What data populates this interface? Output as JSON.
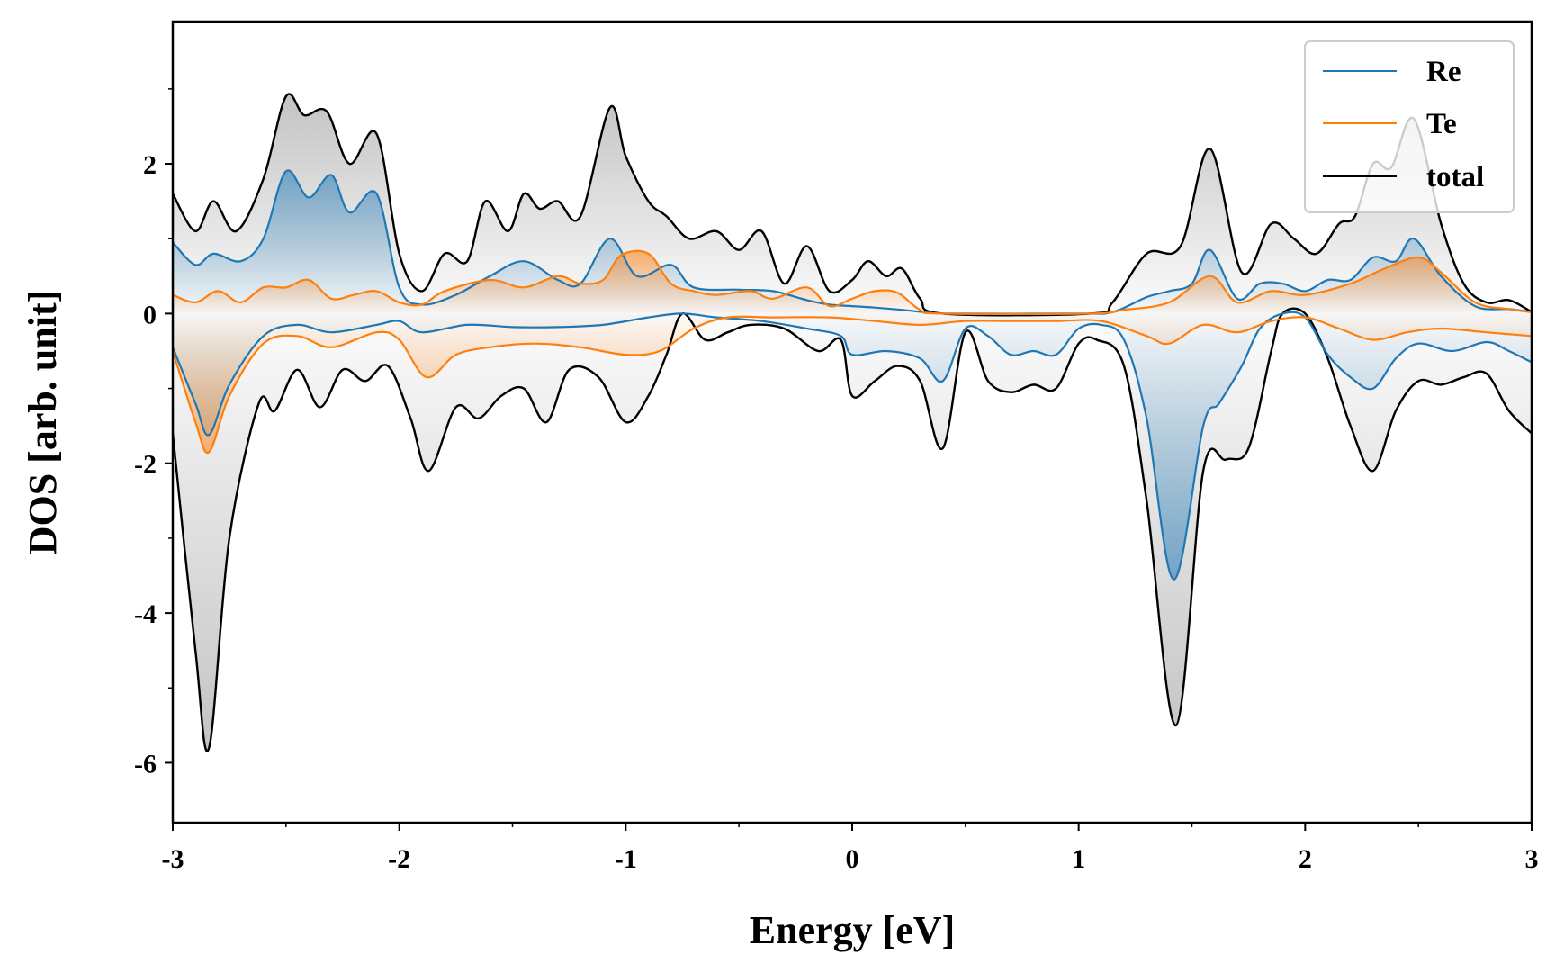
{
  "chart_data": {
    "type": "line",
    "title": "",
    "xlabel": "Energy [eV]",
    "ylabel": "DOS [arb. unit]",
    "xlim": [
      -3,
      3
    ],
    "ylim": [
      -6.8,
      3.9
    ],
    "x_ticks": [
      -3,
      -2,
      -1,
      0,
      1,
      2,
      3
    ],
    "x_tick_labels": [
      "-3",
      "-2",
      "-1",
      "0",
      "1",
      "2",
      "3"
    ],
    "y_ticks": [
      -6,
      -4,
      -2,
      0,
      2
    ],
    "y_tick_labels": [
      "-6",
      "-4",
      "-2",
      "0",
      "2"
    ],
    "legend_position": "top-right",
    "grid": false,
    "series": [
      {
        "name": "Re",
        "color": "#1f77b4",
        "fill_color": "#1f77b4",
        "up": [
          [
            -3,
            0.95
          ],
          [
            -2.9,
            0.65
          ],
          [
            -2.82,
            0.8
          ],
          [
            -2.7,
            0.7
          ],
          [
            -2.6,
            1.0
          ],
          [
            -2.5,
            1.9
          ],
          [
            -2.4,
            1.55
          ],
          [
            -2.3,
            1.85
          ],
          [
            -2.22,
            1.35
          ],
          [
            -2.1,
            1.6
          ],
          [
            -2,
            0.35
          ],
          [
            -1.9,
            0.12
          ],
          [
            -1.75,
            0.25
          ],
          [
            -1.6,
            0.5
          ],
          [
            -1.45,
            0.7
          ],
          [
            -1.3,
            0.45
          ],
          [
            -1.2,
            0.4
          ],
          [
            -1.07,
            1.0
          ],
          [
            -0.95,
            0.5
          ],
          [
            -0.8,
            0.65
          ],
          [
            -0.7,
            0.35
          ],
          [
            -0.5,
            0.32
          ],
          [
            -0.35,
            0.3
          ],
          [
            -0.2,
            0.18
          ],
          [
            -0.1,
            0.12
          ],
          [
            0,
            0.1
          ],
          [
            0.1,
            0.08
          ],
          [
            0.22,
            0.05
          ],
          [
            0.35,
            0.01
          ],
          [
            0.45,
            0.0
          ],
          [
            1.0,
            0.0
          ],
          [
            1.15,
            0.02
          ],
          [
            1.3,
            0.22
          ],
          [
            1.4,
            0.3
          ],
          [
            1.5,
            0.4
          ],
          [
            1.58,
            0.85
          ],
          [
            1.7,
            0.2
          ],
          [
            1.8,
            0.4
          ],
          [
            1.9,
            0.4
          ],
          [
            2.0,
            0.3
          ],
          [
            2.1,
            0.45
          ],
          [
            2.2,
            0.45
          ],
          [
            2.3,
            0.75
          ],
          [
            2.4,
            0.7
          ],
          [
            2.48,
            1.0
          ],
          [
            2.6,
            0.5
          ],
          [
            2.75,
            0.1
          ],
          [
            2.9,
            0.06
          ],
          [
            3,
            0.02
          ]
        ],
        "down": [
          [
            -3,
            -0.45
          ],
          [
            -2.9,
            -1.2
          ],
          [
            -2.84,
            -1.62
          ],
          [
            -2.75,
            -0.95
          ],
          [
            -2.6,
            -0.3
          ],
          [
            -2.45,
            -0.15
          ],
          [
            -2.3,
            -0.25
          ],
          [
            -2.1,
            -0.15
          ],
          [
            -2.0,
            -0.1
          ],
          [
            -1.9,
            -0.25
          ],
          [
            -1.7,
            -0.15
          ],
          [
            -1.5,
            -0.18
          ],
          [
            -1.3,
            -0.18
          ],
          [
            -1.1,
            -0.15
          ],
          [
            -0.9,
            -0.05
          ],
          [
            -0.75,
            0.0
          ],
          [
            -0.6,
            -0.05
          ],
          [
            -0.4,
            -0.1
          ],
          [
            -0.2,
            -0.2
          ],
          [
            -0.05,
            -0.3
          ],
          [
            0,
            -0.55
          ],
          [
            0.15,
            -0.5
          ],
          [
            0.3,
            -0.6
          ],
          [
            0.4,
            -0.9
          ],
          [
            0.5,
            -0.2
          ],
          [
            0.6,
            -0.3
          ],
          [
            0.7,
            -0.55
          ],
          [
            0.8,
            -0.5
          ],
          [
            0.9,
            -0.55
          ],
          [
            1.0,
            -0.2
          ],
          [
            1.1,
            -0.15
          ],
          [
            1.2,
            -0.35
          ],
          [
            1.3,
            -1.4
          ],
          [
            1.42,
            -3.55
          ],
          [
            1.55,
            -1.5
          ],
          [
            1.62,
            -1.2
          ],
          [
            1.72,
            -0.7
          ],
          [
            1.8,
            -0.2
          ],
          [
            1.9,
            0.0
          ],
          [
            2.0,
            -0.05
          ],
          [
            2.1,
            -0.55
          ],
          [
            2.2,
            -0.85
          ],
          [
            2.3,
            -1.0
          ],
          [
            2.4,
            -0.6
          ],
          [
            2.5,
            -0.4
          ],
          [
            2.65,
            -0.5
          ],
          [
            2.8,
            -0.38
          ],
          [
            2.9,
            -0.5
          ],
          [
            3,
            -0.65
          ]
        ]
      },
      {
        "name": "Te",
        "color": "#ff7f0e",
        "fill_color": "#ff7f0e",
        "up": [
          [
            -3,
            0.25
          ],
          [
            -2.9,
            0.15
          ],
          [
            -2.8,
            0.3
          ],
          [
            -2.7,
            0.15
          ],
          [
            -2.6,
            0.35
          ],
          [
            -2.5,
            0.35
          ],
          [
            -2.4,
            0.45
          ],
          [
            -2.3,
            0.2
          ],
          [
            -2.2,
            0.25
          ],
          [
            -2.1,
            0.3
          ],
          [
            -2,
            0.15
          ],
          [
            -1.9,
            0.12
          ],
          [
            -1.8,
            0.3
          ],
          [
            -1.6,
            0.45
          ],
          [
            -1.45,
            0.35
          ],
          [
            -1.3,
            0.5
          ],
          [
            -1.2,
            0.4
          ],
          [
            -1.1,
            0.45
          ],
          [
            -1.02,
            0.78
          ],
          [
            -0.9,
            0.8
          ],
          [
            -0.8,
            0.4
          ],
          [
            -0.7,
            0.3
          ],
          [
            -0.6,
            0.25
          ],
          [
            -0.45,
            0.3
          ],
          [
            -0.35,
            0.2
          ],
          [
            -0.2,
            0.35
          ],
          [
            -0.1,
            0.1
          ],
          [
            0,
            0.2
          ],
          [
            0.1,
            0.3
          ],
          [
            0.2,
            0.28
          ],
          [
            0.3,
            0.05
          ],
          [
            0.4,
            0.0
          ],
          [
            1.05,
            0.0
          ],
          [
            1.2,
            0.05
          ],
          [
            1.4,
            0.15
          ],
          [
            1.58,
            0.5
          ],
          [
            1.7,
            0.15
          ],
          [
            1.85,
            0.3
          ],
          [
            2.0,
            0.25
          ],
          [
            2.2,
            0.4
          ],
          [
            2.35,
            0.6
          ],
          [
            2.5,
            0.75
          ],
          [
            2.6,
            0.55
          ],
          [
            2.75,
            0.15
          ],
          [
            2.9,
            0.06
          ],
          [
            3,
            0.02
          ]
        ],
        "down": [
          [
            -3,
            -0.5
          ],
          [
            -2.9,
            -1.45
          ],
          [
            -2.84,
            -1.85
          ],
          [
            -2.75,
            -1.1
          ],
          [
            -2.6,
            -0.4
          ],
          [
            -2.45,
            -0.3
          ],
          [
            -2.3,
            -0.45
          ],
          [
            -2.1,
            -0.25
          ],
          [
            -2.0,
            -0.35
          ],
          [
            -1.88,
            -0.85
          ],
          [
            -1.75,
            -0.55
          ],
          [
            -1.6,
            -0.45
          ],
          [
            -1.4,
            -0.4
          ],
          [
            -1.2,
            -0.45
          ],
          [
            -1.0,
            -0.55
          ],
          [
            -0.85,
            -0.5
          ],
          [
            -0.7,
            -0.2
          ],
          [
            -0.55,
            -0.05
          ],
          [
            -0.35,
            -0.05
          ],
          [
            -0.1,
            -0.05
          ],
          [
            0.1,
            -0.1
          ],
          [
            0.3,
            -0.15
          ],
          [
            0.5,
            -0.1
          ],
          [
            0.7,
            -0.1
          ],
          [
            0.9,
            -0.1
          ],
          [
            1.1,
            -0.1
          ],
          [
            1.3,
            -0.3
          ],
          [
            1.4,
            -0.4
          ],
          [
            1.55,
            -0.15
          ],
          [
            1.7,
            -0.25
          ],
          [
            1.85,
            -0.1
          ],
          [
            2.0,
            -0.05
          ],
          [
            2.15,
            -0.2
          ],
          [
            2.3,
            -0.35
          ],
          [
            2.45,
            -0.25
          ],
          [
            2.6,
            -0.2
          ],
          [
            2.8,
            -0.25
          ],
          [
            3,
            -0.3
          ]
        ]
      },
      {
        "name": "total",
        "color": "#000000",
        "fill_color": "#555555",
        "up": [
          [
            -3,
            1.6
          ],
          [
            -2.9,
            1.1
          ],
          [
            -2.82,
            1.5
          ],
          [
            -2.72,
            1.1
          ],
          [
            -2.6,
            1.8
          ],
          [
            -2.5,
            2.9
          ],
          [
            -2.42,
            2.65
          ],
          [
            -2.32,
            2.7
          ],
          [
            -2.22,
            2.0
          ],
          [
            -2.1,
            2.4
          ],
          [
            -2.0,
            0.8
          ],
          [
            -1.9,
            0.3
          ],
          [
            -1.8,
            0.8
          ],
          [
            -1.7,
            0.7
          ],
          [
            -1.62,
            1.5
          ],
          [
            -1.52,
            1.1
          ],
          [
            -1.45,
            1.6
          ],
          [
            -1.38,
            1.4
          ],
          [
            -1.3,
            1.5
          ],
          [
            -1.2,
            1.3
          ],
          [
            -1.07,
            2.75
          ],
          [
            -1.0,
            2.1
          ],
          [
            -0.9,
            1.5
          ],
          [
            -0.82,
            1.3
          ],
          [
            -0.72,
            1.0
          ],
          [
            -0.6,
            1.1
          ],
          [
            -0.5,
            0.85
          ],
          [
            -0.4,
            1.1
          ],
          [
            -0.3,
            0.4
          ],
          [
            -0.2,
            0.9
          ],
          [
            -0.1,
            0.3
          ],
          [
            0,
            0.45
          ],
          [
            0.07,
            0.7
          ],
          [
            0.15,
            0.5
          ],
          [
            0.22,
            0.6
          ],
          [
            0.3,
            0.2
          ],
          [
            0.4,
            0.0
          ],
          [
            1.05,
            0.0
          ],
          [
            1.15,
            0.15
          ],
          [
            1.3,
            0.8
          ],
          [
            1.45,
            0.9
          ],
          [
            1.58,
            2.2
          ],
          [
            1.72,
            0.55
          ],
          [
            1.85,
            1.2
          ],
          [
            1.95,
            1.0
          ],
          [
            2.05,
            0.8
          ],
          [
            2.15,
            1.2
          ],
          [
            2.22,
            1.3
          ],
          [
            2.3,
            2.0
          ],
          [
            2.38,
            1.95
          ],
          [
            2.48,
            2.6
          ],
          [
            2.6,
            1.2
          ],
          [
            2.7,
            0.4
          ],
          [
            2.8,
            0.15
          ],
          [
            2.9,
            0.18
          ],
          [
            3,
            0.02
          ]
        ],
        "down": [
          [
            -3,
            -1.6
          ],
          [
            -2.9,
            -4.5
          ],
          [
            -2.84,
            -5.8
          ],
          [
            -2.75,
            -3.0
          ],
          [
            -2.62,
            -1.2
          ],
          [
            -2.55,
            -1.3
          ],
          [
            -2.45,
            -0.75
          ],
          [
            -2.35,
            -1.25
          ],
          [
            -2.25,
            -0.75
          ],
          [
            -2.15,
            -0.9
          ],
          [
            -2.05,
            -0.7
          ],
          [
            -1.95,
            -1.4
          ],
          [
            -1.87,
            -2.1
          ],
          [
            -1.75,
            -1.25
          ],
          [
            -1.65,
            -1.4
          ],
          [
            -1.55,
            -1.1
          ],
          [
            -1.45,
            -1.0
          ],
          [
            -1.35,
            -1.45
          ],
          [
            -1.25,
            -0.75
          ],
          [
            -1.12,
            -0.85
          ],
          [
            -1.0,
            -1.45
          ],
          [
            -0.9,
            -1.1
          ],
          [
            -0.82,
            -0.55
          ],
          [
            -0.75,
            0.0
          ],
          [
            -0.65,
            -0.35
          ],
          [
            -0.55,
            -0.25
          ],
          [
            -0.45,
            -0.15
          ],
          [
            -0.3,
            -0.2
          ],
          [
            -0.15,
            -0.5
          ],
          [
            -0.05,
            -0.35
          ],
          [
            0,
            -1.1
          ],
          [
            0.1,
            -0.9
          ],
          [
            0.2,
            -0.7
          ],
          [
            0.3,
            -0.9
          ],
          [
            0.4,
            -1.8
          ],
          [
            0.5,
            -0.25
          ],
          [
            0.6,
            -0.9
          ],
          [
            0.7,
            -1.05
          ],
          [
            0.8,
            -0.95
          ],
          [
            0.9,
            -1.0
          ],
          [
            1.0,
            -0.4
          ],
          [
            1.08,
            -0.35
          ],
          [
            1.2,
            -0.7
          ],
          [
            1.3,
            -2.5
          ],
          [
            1.43,
            -5.5
          ],
          [
            1.55,
            -2.1
          ],
          [
            1.65,
            -1.95
          ],
          [
            1.75,
            -1.8
          ],
          [
            1.85,
            -0.5
          ],
          [
            1.9,
            0.0
          ],
          [
            2.0,
            0.0
          ],
          [
            2.1,
            -0.6
          ],
          [
            2.2,
            -1.5
          ],
          [
            2.3,
            -2.1
          ],
          [
            2.4,
            -1.3
          ],
          [
            2.5,
            -0.9
          ],
          [
            2.6,
            -0.95
          ],
          [
            2.7,
            -0.85
          ],
          [
            2.8,
            -0.8
          ],
          [
            2.9,
            -1.3
          ],
          [
            3,
            -1.6
          ]
        ]
      }
    ]
  }
}
